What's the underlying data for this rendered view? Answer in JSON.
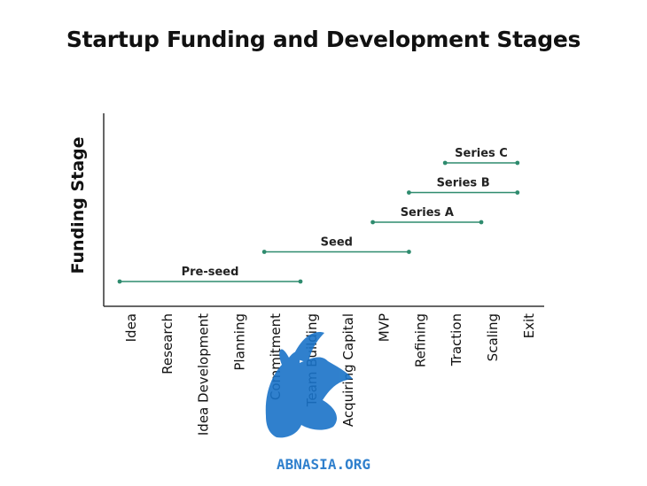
{
  "title": "Startup Funding and Development Stages",
  "chart_data": {
    "type": "range-line",
    "title": "Startup Funding and Development Stages",
    "xlabel": "",
    "ylabel": "Funding Stage",
    "categories": [
      "Idea",
      "Research",
      "Idea Development",
      "Planning",
      "Commitment",
      "Team Building",
      "Acquiring Capital",
      "MVP",
      "Refining",
      "Traction",
      "Scaling",
      "Exit"
    ],
    "series": [
      {
        "name": "Pre-seed",
        "start": "Idea",
        "end": "Team Building",
        "level": 1
      },
      {
        "name": "Seed",
        "start": "Commitment",
        "end": "Refining",
        "level": 2
      },
      {
        "name": "Series A",
        "start": "MVP",
        "end": "Scaling",
        "level": 3
      },
      {
        "name": "Series B",
        "start": "Refining",
        "end": "Exit",
        "level": 4
      },
      {
        "name": "Series C",
        "start": "Traction",
        "end": "Exit",
        "level": 5
      }
    ],
    "colors": {
      "line": "#2e8b6e",
      "axis": "#333333"
    },
    "grid": false,
    "legend": "none"
  },
  "watermark": {
    "text": "ABNASIA.ORG",
    "color": "#1a73c8"
  }
}
